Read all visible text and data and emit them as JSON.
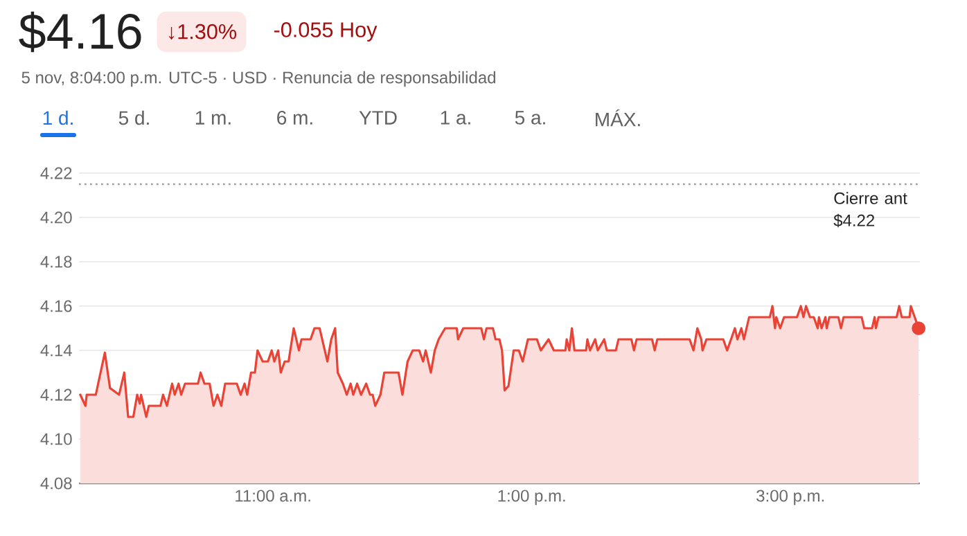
{
  "chart_data": {
    "type": "area",
    "title": "$4.16",
    "subtitle": "5 nov, 8:04:00 p.m. UTC-5 · USD · Renuncia de responsabilidad",
    "annotations": [
      "↓1.30%",
      "-0.055 Hoy",
      "1 d.",
      "5 d.",
      "1 m.",
      "6 m.",
      "YTD",
      "1 a.",
      "5 a.",
      "MÁX."
    ],
    "xlim": [
      9.5,
      16
    ],
    "xticks": [
      {
        "value": 11,
        "label": "11:00 a.m."
      },
      {
        "value": 13,
        "label": "1:00 p.m."
      },
      {
        "value": 15,
        "label": "3:00 p.m."
      }
    ],
    "ylim": [
      4.08,
      4.22
    ],
    "yticks": [
      4.08,
      {
        "value": 4.1,
        "label": "4.10"
      },
      4.12,
      4.14,
      4.16,
      4.18,
      {
        "value": 4.2,
        "label": "4.20"
      },
      4.22
    ],
    "grid": "y",
    "ref_lines": [
      {
        "axis": "y",
        "value": 4.215,
        "label": "Cierre ant $4.22",
        "color": "#9aa0a6",
        "line_style": "dotted"
      }
    ],
    "series": [
      {
        "color": "#ea4335",
        "x": [
          9.51,
          9.55,
          9.56,
          9.63,
          9.7,
          9.74,
          9.81,
          9.85,
          9.88,
          9.92,
          9.95,
          9.97,
          9.98,
          10.02,
          10.04,
          10.13,
          10.15,
          10.18,
          10.22,
          10.24,
          10.27,
          10.29,
          10.32,
          10.42,
          10.44,
          10.47,
          10.51,
          10.54,
          10.57,
          10.6,
          10.63,
          10.72,
          10.75,
          10.78,
          10.8,
          10.83,
          10.86,
          10.88,
          10.92,
          10.96,
          10.99,
          11.01,
          11.04,
          11.06,
          11.09,
          11.12,
          11.16,
          11.2,
          11.22,
          11.29,
          11.32,
          11.36,
          11.42,
          11.45,
          11.48,
          11.5,
          11.54,
          11.57,
          11.6,
          11.62,
          11.65,
          11.68,
          11.72,
          11.75,
          11.77,
          11.79,
          11.83,
          11.86,
          11.97,
          12.0,
          12.04,
          12.08,
          12.13,
          12.16,
          12.18,
          12.22,
          12.25,
          12.28,
          12.33,
          12.42,
          12.43,
          12.47,
          12.61,
          12.63,
          12.65,
          12.7,
          12.72,
          12.75,
          12.77,
          12.79,
          12.82,
          12.86,
          12.9,
          12.93,
          12.97,
          13.04,
          13.07,
          13.13,
          13.17,
          13.26,
          13.27,
          13.29,
          13.31,
          13.33,
          13.42,
          13.43,
          13.45,
          13.49,
          13.51,
          13.56,
          13.58,
          13.65,
          13.67,
          13.77,
          13.79,
          13.81,
          13.93,
          13.95,
          13.97,
          14.22,
          14.25,
          14.28,
          14.31,
          14.32,
          14.35,
          14.48,
          14.51,
          14.54,
          14.57,
          14.59,
          14.62,
          14.64,
          14.66,
          14.68,
          14.84,
          14.86,
          14.88,
          14.89,
          14.92,
          14.95,
          15.05,
          15.08,
          15.1,
          15.12,
          15.15,
          15.18,
          15.21,
          15.22,
          15.24,
          15.27,
          15.28,
          15.3,
          15.37,
          15.39,
          15.41,
          15.55,
          15.57,
          15.63,
          15.65,
          15.66,
          15.68,
          15.82,
          15.84,
          15.86,
          15.92,
          15.93,
          15.96,
          15.99
        ],
        "values": [
          4.12,
          4.115,
          4.12,
          4.12,
          4.139,
          4.123,
          4.12,
          4.13,
          4.11,
          4.11,
          4.12,
          4.116,
          4.12,
          4.11,
          4.115,
          4.115,
          4.12,
          4.115,
          4.125,
          4.12,
          4.125,
          4.12,
          4.125,
          4.125,
          4.13,
          4.125,
          4.125,
          4.115,
          4.12,
          4.115,
          4.125,
          4.125,
          4.12,
          4.125,
          4.12,
          4.13,
          4.13,
          4.14,
          4.135,
          4.135,
          4.14,
          4.135,
          4.14,
          4.13,
          4.135,
          4.135,
          4.15,
          4.14,
          4.145,
          4.145,
          4.15,
          4.15,
          4.135,
          4.145,
          4.15,
          4.13,
          4.125,
          4.12,
          4.125,
          4.12,
          4.125,
          4.12,
          4.125,
          4.12,
          4.12,
          4.115,
          4.12,
          4.13,
          4.13,
          4.12,
          4.135,
          4.14,
          4.14,
          4.135,
          4.14,
          4.13,
          4.14,
          4.145,
          4.15,
          4.15,
          4.145,
          4.15,
          4.15,
          4.145,
          4.15,
          4.15,
          4.145,
          4.145,
          4.14,
          4.122,
          4.124,
          4.14,
          4.14,
          4.135,
          4.145,
          4.145,
          4.14,
          4.145,
          4.14,
          4.14,
          4.145,
          4.14,
          4.15,
          4.14,
          4.14,
          4.145,
          4.14,
          4.145,
          4.14,
          4.145,
          4.14,
          4.14,
          4.145,
          4.145,
          4.14,
          4.145,
          4.145,
          4.14,
          4.145,
          4.145,
          4.14,
          4.15,
          4.145,
          4.14,
          4.145,
          4.145,
          4.14,
          4.145,
          4.15,
          4.145,
          4.15,
          4.145,
          4.15,
          4.155,
          4.155,
          4.16,
          4.15,
          4.155,
          4.15,
          4.155,
          4.155,
          4.16,
          4.155,
          4.16,
          4.155,
          4.155,
          4.15,
          4.155,
          4.15,
          4.155,
          4.15,
          4.155,
          4.155,
          4.15,
          4.155,
          4.155,
          4.15,
          4.15,
          4.155,
          4.15,
          4.155,
          4.155,
          4.16,
          4.155,
          4.155,
          4.16,
          4.155,
          4.15
        ]
      },
      {
        "type": "scatter",
        "color": "#ea4335",
        "marker": "circle",
        "x": [
          15.99
        ],
        "values": [
          4.15
        ]
      }
    ]
  }
}
